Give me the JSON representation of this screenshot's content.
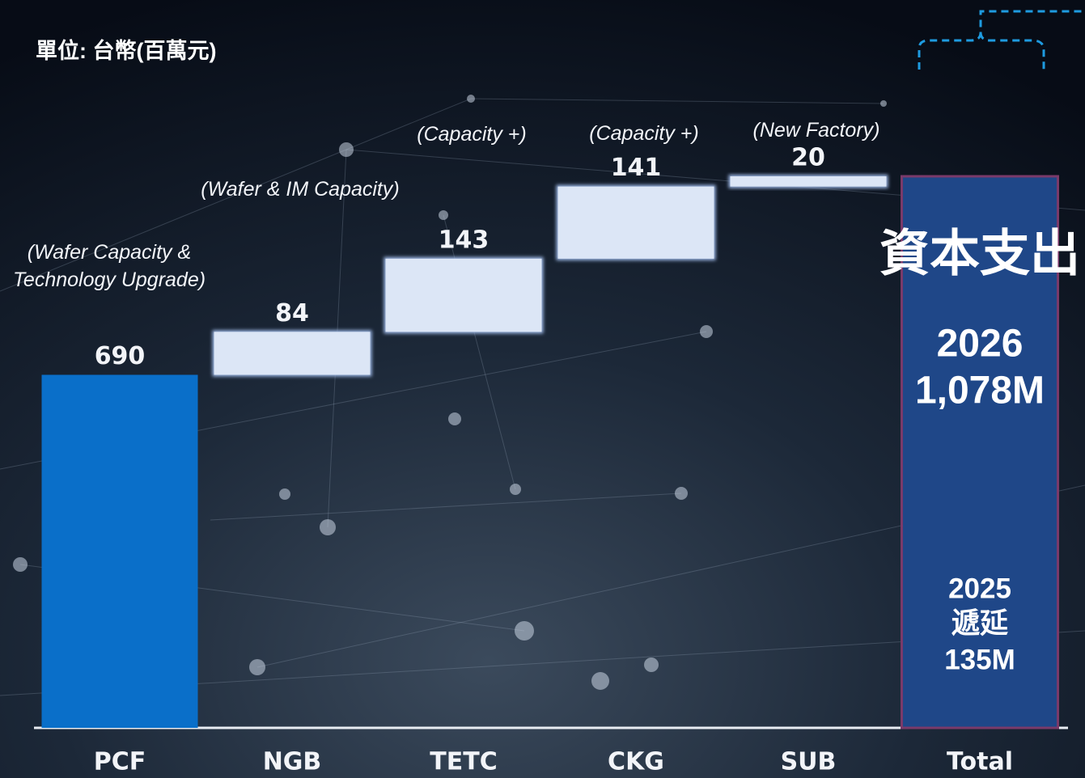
{
  "chart_data": {
    "type": "waterfall",
    "unit_label": "單位: 台幣(百萬元)",
    "categories": [
      "PCF",
      "NGB",
      "TETC",
      "CKG",
      "SUB",
      "Total"
    ],
    "values": [
      690,
      84,
      143,
      141,
      20,
      1078
    ],
    "value_labels": [
      "690",
      "84",
      "143",
      "141",
      "20",
      "1,078M"
    ],
    "bar_notes": [
      "(Wafer Capacity &\nTechnology Upgrade)",
      "(Wafer & IM Capacity)",
      "(Capacity +)",
      "(Capacity +)",
      "(New Factory)"
    ],
    "colors": {
      "start": "#0a6fc9",
      "step": "#dce6f6",
      "total": "#1f4788"
    },
    "total_notes": {
      "heading": "資本支出",
      "year": "2026",
      "deferred_year": "2025",
      "deferred_label": "遞延",
      "deferred_amount": "135M"
    }
  }
}
